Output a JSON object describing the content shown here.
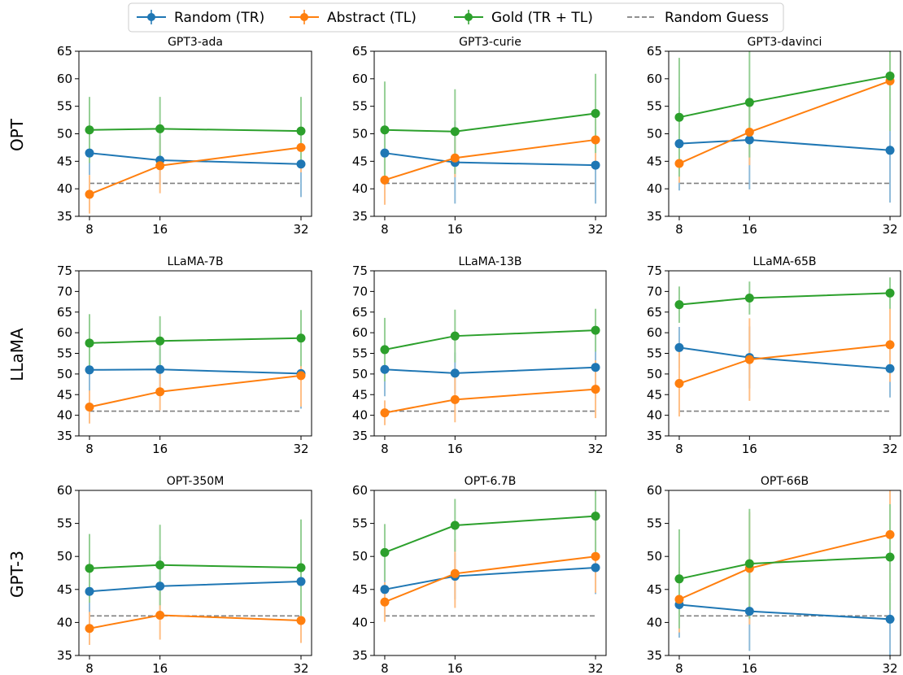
{
  "legend": [
    {
      "label": "Random (TR)",
      "color": "#1f77b4",
      "style": "solid-marker"
    },
    {
      "label": "Abstract (TL)",
      "color": "#ff7f0e",
      "style": "solid-marker"
    },
    {
      "label": "Gold (TR + TL)",
      "color": "#2ca02c",
      "style": "solid-marker"
    },
    {
      "label": "Random Guess",
      "color": "#808080",
      "style": "dashed"
    }
  ],
  "row_labels": [
    "OPT",
    "LLaMA",
    "GPT-3"
  ],
  "chart_data": [
    {
      "type": "line",
      "title": "GPT3-ada",
      "x": [
        8,
        16,
        32
      ],
      "ylim": [
        35,
        65
      ],
      "yticks": [
        35,
        40,
        45,
        50,
        55,
        60,
        65
      ],
      "baseline": 41,
      "series": [
        {
          "name": "Random (TR)",
          "values": [
            46.5,
            45.2,
            44.5
          ],
          "err": [
            4.0,
            4.5,
            6.0
          ]
        },
        {
          "name": "Abstract (TL)",
          "values": [
            39.0,
            44.2,
            47.5
          ],
          "err": [
            3.5,
            5.0,
            4.5
          ]
        },
        {
          "name": "Gold (TR + TL)",
          "values": [
            50.7,
            50.9,
            50.5
          ],
          "err": [
            6.0,
            5.8,
            6.2
          ]
        }
      ]
    },
    {
      "type": "line",
      "title": "GPT3-curie",
      "x": [
        8,
        16,
        32
      ],
      "ylim": [
        35,
        65
      ],
      "yticks": [
        35,
        40,
        45,
        50,
        55,
        60,
        65
      ],
      "baseline": 41,
      "series": [
        {
          "name": "Random (TR)",
          "values": [
            46.5,
            44.8,
            44.3
          ],
          "err": [
            4.0,
            7.5,
            7.0
          ]
        },
        {
          "name": "Abstract (TL)",
          "values": [
            41.6,
            45.6,
            48.9
          ],
          "err": [
            4.5,
            3.5,
            4.5
          ]
        },
        {
          "name": "Gold (TR + TL)",
          "values": [
            50.7,
            50.4,
            53.7
          ],
          "err": [
            8.8,
            7.7,
            7.2
          ]
        }
      ]
    },
    {
      "type": "line",
      "title": "GPT3-davinci",
      "x": [
        8,
        16,
        32
      ],
      "ylim": [
        35,
        65
      ],
      "yticks": [
        35,
        40,
        45,
        50,
        55,
        60,
        65
      ],
      "baseline": 41,
      "series": [
        {
          "name": "Random (TR)",
          "values": [
            48.2,
            48.9,
            47.0
          ],
          "err": [
            8.5,
            9.0,
            9.5
          ]
        },
        {
          "name": "Abstract (TL)",
          "values": [
            44.6,
            50.3,
            59.6
          ],
          "err": [
            3.5,
            6.0,
            6.0
          ]
        },
        {
          "name": "Gold (TR + TL)",
          "values": [
            53.0,
            55.7,
            60.5
          ],
          "err": [
            10.8,
            10.0,
            10.0
          ]
        }
      ]
    },
    {
      "type": "line",
      "title": "LLaMA-7B",
      "x": [
        8,
        16,
        32
      ],
      "ylim": [
        35,
        75
      ],
      "yticks": [
        35,
        40,
        45,
        50,
        55,
        60,
        65,
        70,
        75
      ],
      "baseline": 41,
      "series": [
        {
          "name": "Random (TR)",
          "values": [
            51.0,
            51.1,
            50.1
          ],
          "err": [
            6.0,
            5.0,
            8.5
          ]
        },
        {
          "name": "Abstract (TL)",
          "values": [
            42.0,
            45.7,
            49.6
          ],
          "err": [
            4.0,
            4.5,
            7.5
          ]
        },
        {
          "name": "Gold (TR + TL)",
          "values": [
            57.5,
            58.0,
            58.7
          ],
          "err": [
            7.0,
            6.0,
            6.8
          ]
        }
      ]
    },
    {
      "type": "line",
      "title": "LLaMA-13B",
      "x": [
        8,
        16,
        32
      ],
      "ylim": [
        35,
        75
      ],
      "yticks": [
        35,
        40,
        45,
        50,
        55,
        60,
        65,
        70,
        75
      ],
      "baseline": 41,
      "series": [
        {
          "name": "Random (TR)",
          "values": [
            51.1,
            50.2,
            51.6
          ],
          "err": [
            6.5,
            5.0,
            7.5
          ]
        },
        {
          "name": "Abstract (TL)",
          "values": [
            40.6,
            43.8,
            46.3
          ],
          "err": [
            3.0,
            5.5,
            7.0
          ]
        },
        {
          "name": "Gold (TR + TL)",
          "values": [
            55.9,
            59.2,
            60.6
          ],
          "err": [
            7.7,
            6.4,
            5.2
          ]
        }
      ]
    },
    {
      "type": "line",
      "title": "LLaMA-65B",
      "x": [
        8,
        16,
        32
      ],
      "ylim": [
        35,
        75
      ],
      "yticks": [
        35,
        40,
        45,
        50,
        55,
        60,
        65,
        70,
        75
      ],
      "baseline": 41,
      "series": [
        {
          "name": "Random (TR)",
          "values": [
            56.4,
            54.0,
            51.3
          ],
          "err": [
            5.0,
            7.5,
            7.0
          ]
        },
        {
          "name": "Abstract (TL)",
          "values": [
            47.7,
            53.5,
            57.1
          ],
          "err": [
            8.0,
            10.0,
            9.0
          ]
        },
        {
          "name": "Gold (TR + TL)",
          "values": [
            66.8,
            68.4,
            69.6
          ],
          "err": [
            4.4,
            4.0,
            3.8
          ]
        }
      ]
    },
    {
      "type": "line",
      "title": "OPT-350M",
      "x": [
        8,
        16,
        32
      ],
      "ylim": [
        35,
        60
      ],
      "yticks": [
        35,
        40,
        45,
        50,
        55,
        60
      ],
      "baseline": 41,
      "series": [
        {
          "name": "Random (TR)",
          "values": [
            44.7,
            45.5,
            46.2
          ],
          "err": [
            3.5,
            4.5,
            6.0
          ]
        },
        {
          "name": "Abstract (TL)",
          "values": [
            39.1,
            41.1,
            40.3
          ],
          "err": [
            2.5,
            3.7,
            3.4
          ]
        },
        {
          "name": "Gold (TR + TL)",
          "values": [
            48.2,
            48.7,
            48.3
          ],
          "err": [
            5.2,
            6.1,
            7.3
          ]
        }
      ]
    },
    {
      "type": "line",
      "title": "OPT-6.7B",
      "x": [
        8,
        16,
        32
      ],
      "ylim": [
        35,
        60
      ],
      "yticks": [
        35,
        40,
        45,
        50,
        55,
        60
      ],
      "baseline": 41,
      "series": [
        {
          "name": "Random (TR)",
          "values": [
            45.0,
            47.0,
            48.3
          ],
          "err": [
            4.5,
            3.5,
            4.0
          ]
        },
        {
          "name": "Abstract (TL)",
          "values": [
            43.1,
            47.4,
            50.0
          ],
          "err": [
            3.0,
            5.2,
            5.5
          ]
        },
        {
          "name": "Gold (TR + TL)",
          "values": [
            50.6,
            54.7,
            56.1
          ],
          "err": [
            4.3,
            4.0,
            5.5
          ]
        }
      ]
    },
    {
      "type": "line",
      "title": "OPT-66B",
      "x": [
        8,
        16,
        32
      ],
      "ylim": [
        35,
        60
      ],
      "yticks": [
        35,
        40,
        45,
        50,
        55,
        60
      ],
      "baseline": 41,
      "series": [
        {
          "name": "Random (TR)",
          "values": [
            42.7,
            41.7,
            40.5
          ],
          "err": [
            5.0,
            6.0,
            5.5
          ]
        },
        {
          "name": "Abstract (TL)",
          "values": [
            43.5,
            48.2,
            53.3
          ],
          "err": [
            5.0,
            8.5,
            7.0
          ]
        },
        {
          "name": "Gold (TR + TL)",
          "values": [
            46.6,
            48.9,
            49.9
          ],
          "err": [
            7.5,
            8.3,
            8.0
          ]
        }
      ]
    }
  ]
}
